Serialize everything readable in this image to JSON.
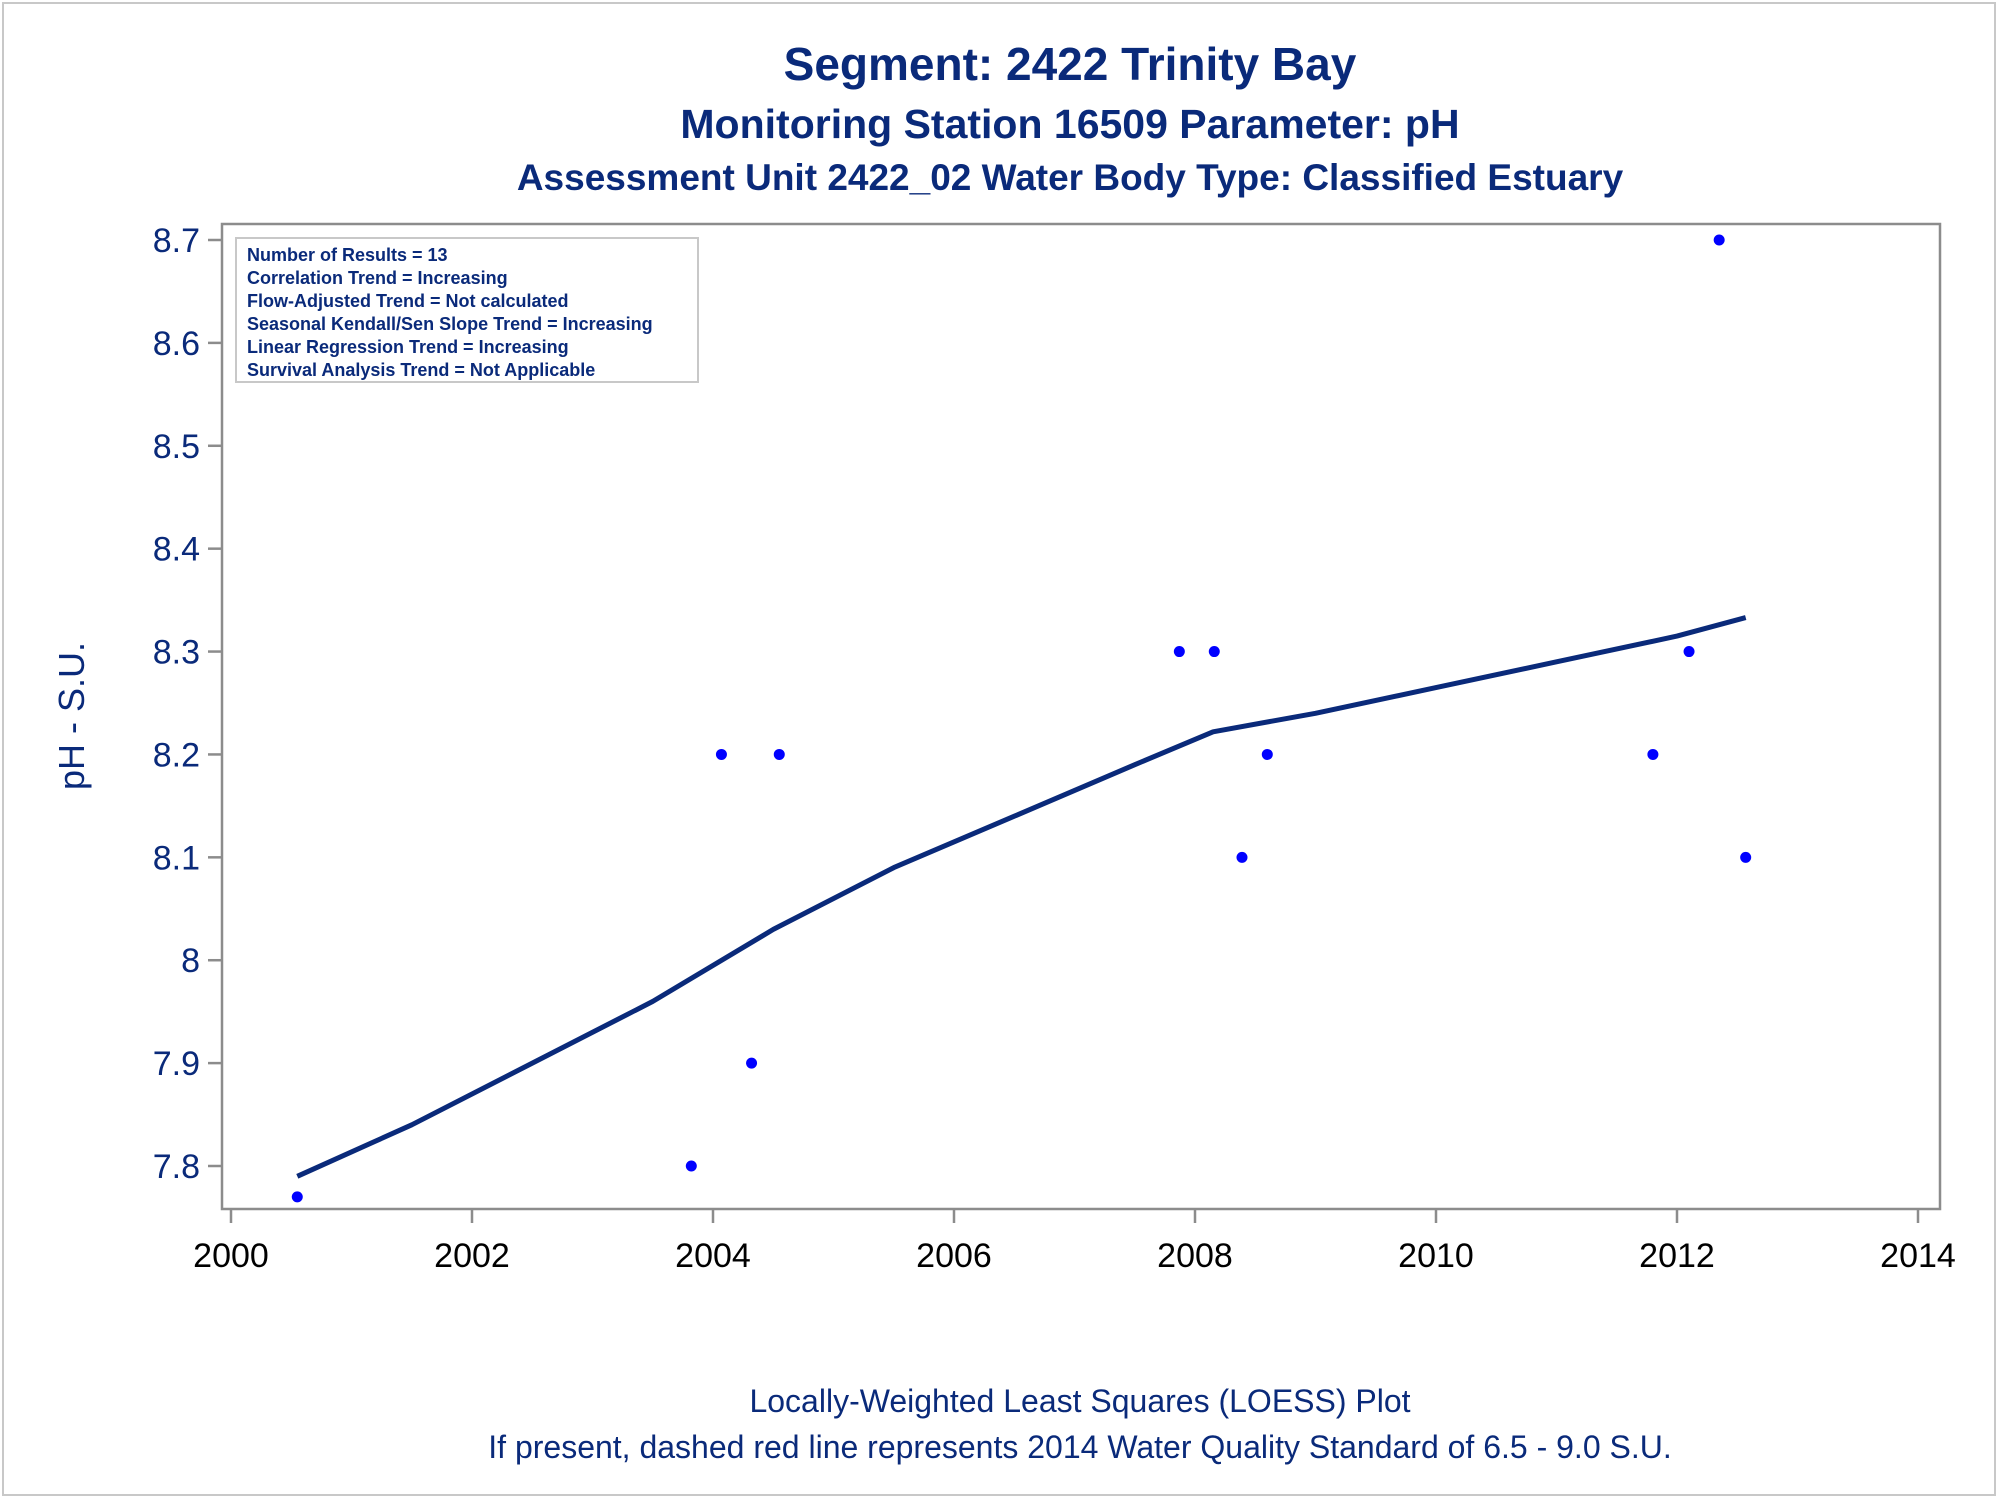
{
  "chart_data": {
    "type": "scatter",
    "title": "Segment: 2422  Trinity Bay",
    "subtitle": "Monitoring Station 16509 Parameter: pH",
    "subtitle2": "Assessment Unit 2422_02   Water Body Type: Classified Estuary",
    "xlabel": "",
    "ylabel": "pH - S.U.",
    "xlim": [
      2000,
      2014
    ],
    "ylim": [
      7.76,
      8.72
    ],
    "x_ticks": [
      "2000",
      "2002",
      "2004",
      "2006",
      "2008",
      "2010",
      "2012",
      "2014"
    ],
    "y_ticks": [
      "7.8",
      "7.9",
      "8",
      "8.1",
      "8.2",
      "8.3",
      "8.4",
      "8.5",
      "8.6",
      "8.7"
    ],
    "grid": false,
    "series": [
      {
        "type": "scatter",
        "color": "#0000ff",
        "points": [
          {
            "x": 2000.55,
            "y": 7.77
          },
          {
            "x": 2003.82,
            "y": 7.8
          },
          {
            "x": 2004.07,
            "y": 8.2
          },
          {
            "x": 2004.32,
            "y": 7.9
          },
          {
            "x": 2004.55,
            "y": 8.2
          },
          {
            "x": 2007.87,
            "y": 8.3
          },
          {
            "x": 2008.16,
            "y": 8.3
          },
          {
            "x": 2008.39,
            "y": 8.1
          },
          {
            "x": 2008.6,
            "y": 8.2
          },
          {
            "x": 2011.8,
            "y": 8.2
          },
          {
            "x": 2012.1,
            "y": 8.3
          },
          {
            "x": 2012.35,
            "y": 8.7
          },
          {
            "x": 2012.57,
            "y": 8.1
          }
        ]
      },
      {
        "type": "line",
        "color": "#0a2a7a",
        "points": [
          {
            "x": 2000.55,
            "y": 7.79
          },
          {
            "x": 2001.5,
            "y": 7.84
          },
          {
            "x": 2002.5,
            "y": 7.9
          },
          {
            "x": 2003.5,
            "y": 7.96
          },
          {
            "x": 2004.5,
            "y": 8.03
          },
          {
            "x": 2005.5,
            "y": 8.09
          },
          {
            "x": 2006.5,
            "y": 8.14
          },
          {
            "x": 2007.5,
            "y": 8.19
          },
          {
            "x": 2008.15,
            "y": 8.222
          },
          {
            "x": 2009.0,
            "y": 8.24
          },
          {
            "x": 2010.0,
            "y": 8.265
          },
          {
            "x": 2011.0,
            "y": 8.29
          },
          {
            "x": 2012.0,
            "y": 8.315
          },
          {
            "x": 2012.57,
            "y": 8.333
          }
        ]
      }
    ],
    "annotations": [
      "Number of Results = 13",
      "Correlation Trend = Increasing",
      "Flow-Adjusted Trend = Not calculated",
      "Seasonal Kendall/Sen Slope Trend = Increasing",
      "Linear Regression Trend = Increasing",
      "Survival Analysis Trend = Not Applicable"
    ],
    "footnotes": [
      "Locally-Weighted Least Squares (LOESS) Plot",
      "If present, dashed red line represents 2014 Water Quality Standard of 6.5 - 9.0 S.U."
    ]
  }
}
